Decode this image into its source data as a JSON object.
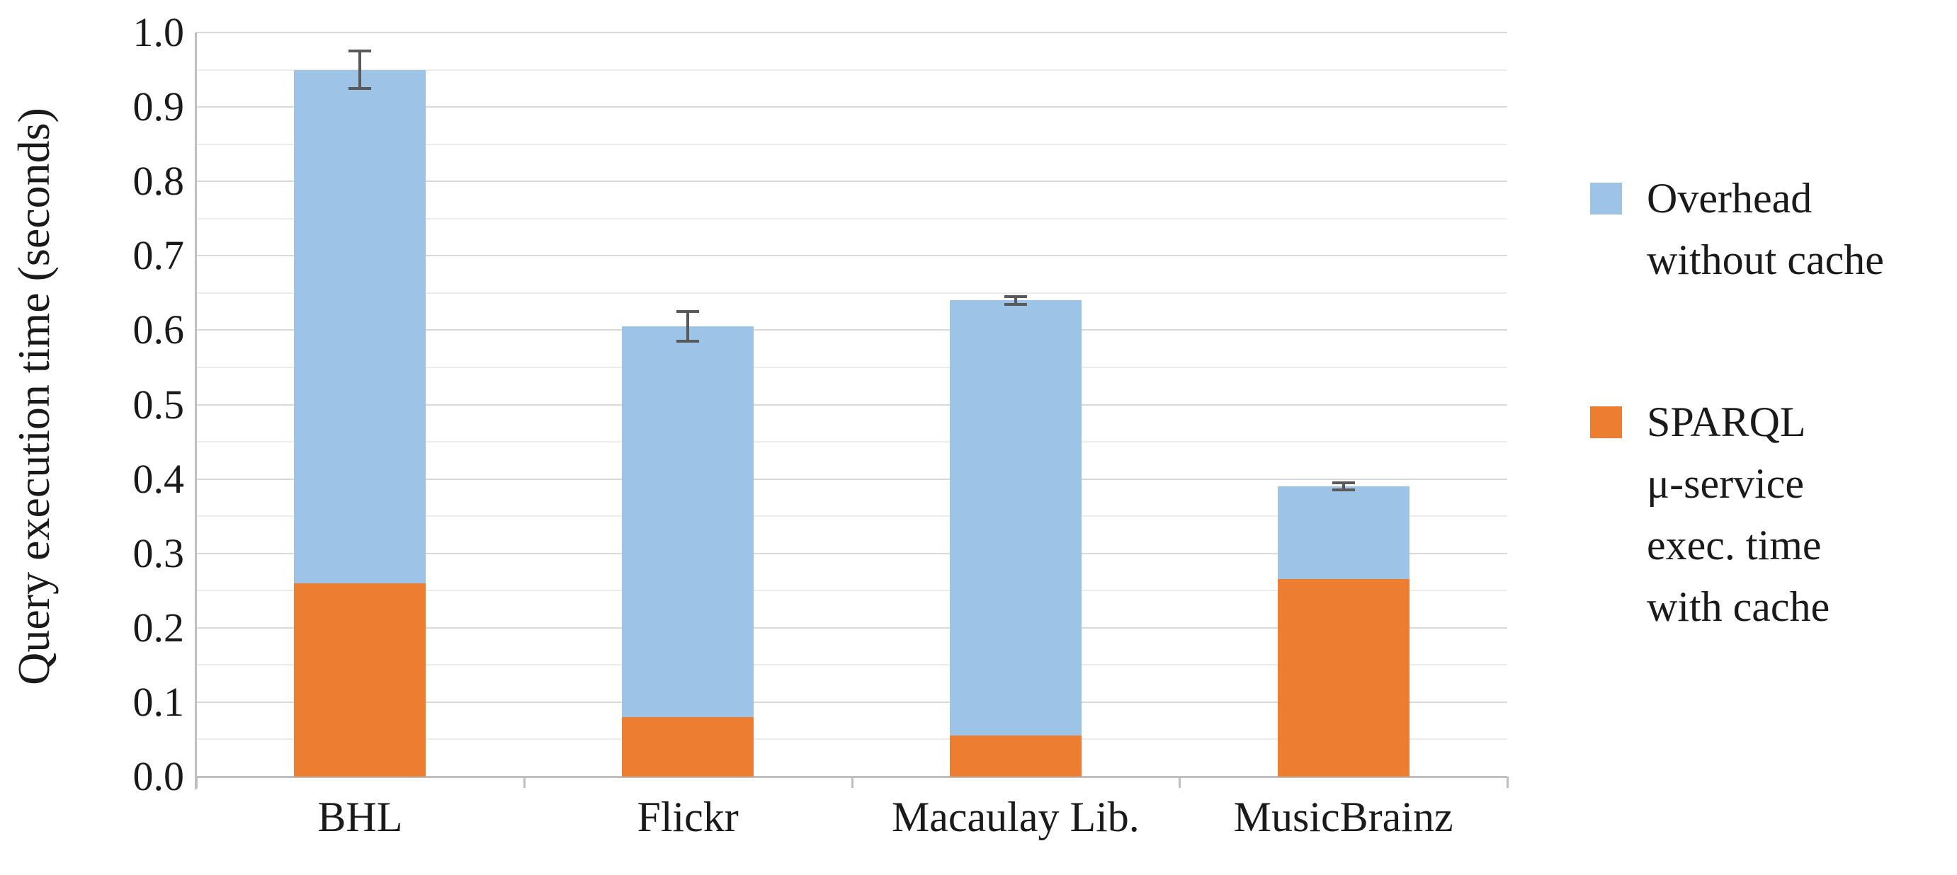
{
  "chart_data": {
    "type": "bar",
    "stacked": true,
    "title": "",
    "categories": [
      "BHL",
      "Flickr",
      "Macaulay Lib.",
      "MusicBrainz"
    ],
    "series": [
      {
        "name": "SPARQL μ-service exec. time with cache",
        "color": "#ED7D31",
        "values": [
          0.26,
          0.08,
          0.055,
          0.265
        ]
      },
      {
        "name": "Overhead without cache",
        "color": "#9DC3E6",
        "values": [
          0.69,
          0.525,
          0.585,
          0.125
        ]
      }
    ],
    "stack_totals": [
      0.95,
      0.605,
      0.64,
      0.39
    ],
    "error_bars": {
      "color": "#595959",
      "plus_minus": [
        0.025,
        0.02,
        0.005,
        0.005
      ]
    },
    "xlabel": "",
    "ylabel": "Query execution time (seconds)",
    "ylim": [
      0.0,
      1.0
    ],
    "y_major_step": 0.1,
    "y_minor_step": 0.05,
    "y_tick_labels": [
      "0.0",
      "0.1",
      "0.2",
      "0.3",
      "0.4",
      "0.5",
      "0.6",
      "0.7",
      "0.8",
      "0.9",
      "1.0"
    ],
    "grid": true,
    "legend_position": "right"
  },
  "legend": {
    "items": [
      {
        "series": "Overhead without cache",
        "swatch_color": "#9DC3E6",
        "lines": [
          "Overhead",
          "without cache"
        ]
      },
      {
        "series": "SPARQL μ-service exec. time with cache",
        "swatch_color": "#ED7D31",
        "lines": [
          "SPARQL",
          "μ-service",
          "exec. time",
          "with cache"
        ]
      }
    ]
  },
  "colors": {
    "grid_major": "#D9D9D9",
    "grid_minor": "#ECECEC",
    "axis_line": "#BFBFBF",
    "error_bar": "#595959",
    "text": "#1A1A1A"
  }
}
